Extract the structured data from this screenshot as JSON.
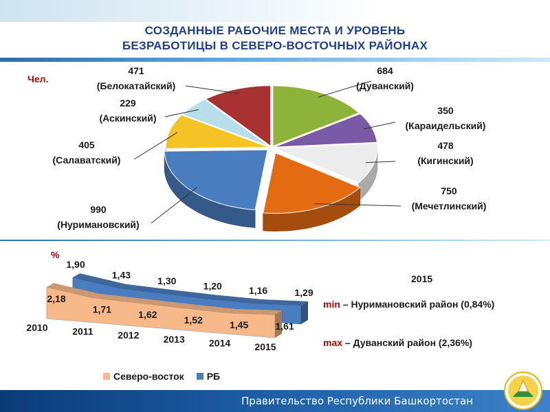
{
  "page": {
    "title_line1": "СОЗДАННЫЕ РАБОЧИЕ МЕСТА И УРОВЕНЬ",
    "title_line2": "БЕЗРАБОТИЦЫ В СЕВЕРО-ВОСТОЧНЫХ РАЙОНАХ",
    "footer_text": "Правительство Республики Башкортостан",
    "emblem_icon": "bashkortostan-emblem-icon"
  },
  "chart_data": [
    {
      "type": "pie",
      "unit_label": "Чел.",
      "slices": [
        {
          "label": "Дуванский",
          "value": 684,
          "color": "#8db33a"
        },
        {
          "label": "Караидельский",
          "value": 350,
          "color": "#7a5aa6"
        },
        {
          "label": "Кигинский",
          "value": 478,
          "color": "#ececec"
        },
        {
          "label": "Мечетлинский",
          "value": 750,
          "color": "#e56b13"
        },
        {
          "label": "Нуримановский",
          "value": 990,
          "color": "#4a7dc0"
        },
        {
          "label": "Салаватский",
          "value": 405,
          "color": "#f5c324"
        },
        {
          "label": "Аскинский",
          "value": 229,
          "color": "#b8dfe9"
        },
        {
          "label": "Белокатайский",
          "value": 471,
          "color": "#a83232"
        }
      ]
    },
    {
      "type": "area",
      "unit_label": "%",
      "categories": [
        "2010",
        "2011",
        "2012",
        "2013",
        "2014",
        "2015"
      ],
      "series": [
        {
          "name": "Северо-восток",
          "values": [
            2.18,
            1.71,
            1.62,
            1.52,
            1.45,
            1.61
          ],
          "labels": [
            "2,18",
            "1,71",
            "1,62",
            "1,52",
            "1,45",
            "1,61"
          ],
          "color": "#f7b98a"
        },
        {
          "name": "РБ",
          "values": [
            1.9,
            1.43,
            1.3,
            1.2,
            1.16,
            1.29
          ],
          "labels": [
            "1,90",
            "1,43",
            "1,30",
            "1,20",
            "1,16",
            "1,29"
          ],
          "color": "#4a7dc0"
        }
      ]
    }
  ],
  "notes": {
    "year": "2015",
    "min_kw": "min",
    "min_text": " – Нуримановский район (0,84%)",
    "max_kw": "max",
    "max_text": " – Дуванский район (2,36%)"
  }
}
